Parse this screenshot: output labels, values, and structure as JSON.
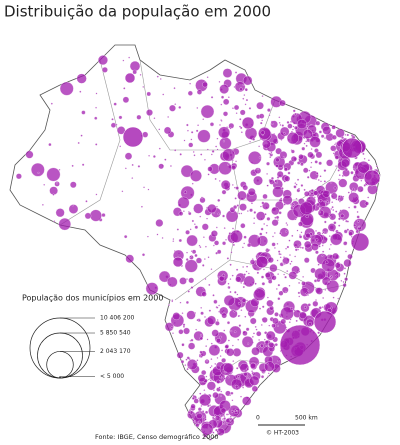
{
  "title": "Distribuição da população em 2000",
  "legend": {
    "title": "População dos municípios em 2000",
    "items": [
      {
        "value": 10406200,
        "label": "10 406 200"
      },
      {
        "value": 5850540,
        "label": "5 850 540"
      },
      {
        "value": 2043170,
        "label": "2 043 170"
      },
      {
        "value": 5000,
        "label": "< 5 000"
      }
    ]
  },
  "scale": {
    "start": "0",
    "end": "500 km"
  },
  "source": "Fonte: IBGE, Censo demográfico 2000",
  "credit": "© HT-2003"
}
